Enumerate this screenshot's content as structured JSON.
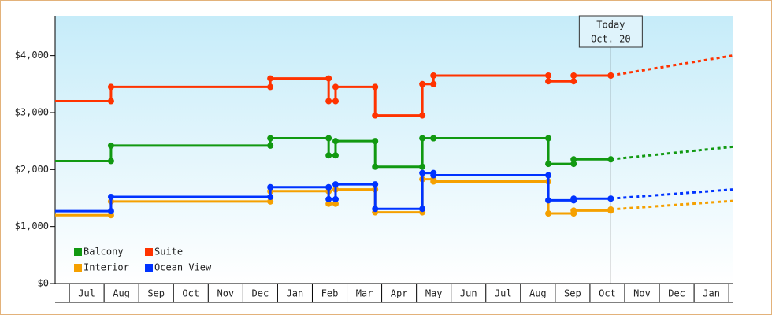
{
  "chart_data": {
    "type": "step",
    "xlim": [
      -0.41,
      19.11
    ],
    "ylim": [
      0,
      4700
    ],
    "yticks": [
      {
        "value": 0,
        "label": "$0"
      },
      {
        "value": 1000,
        "label": "$1,000"
      },
      {
        "value": 2000,
        "label": "$2,000"
      },
      {
        "value": 3000,
        "label": "$3,000"
      },
      {
        "value": 4000,
        "label": "$4,000"
      }
    ],
    "xticks": [
      {
        "value": 0.5,
        "label": "Jul"
      },
      {
        "value": 1.5,
        "label": "Aug"
      },
      {
        "value": 2.5,
        "label": "Sep"
      },
      {
        "value": 3.5,
        "label": "Oct"
      },
      {
        "value": 4.5,
        "label": "Nov"
      },
      {
        "value": 5.5,
        "label": "Dec"
      },
      {
        "value": 6.5,
        "label": "Jan"
      },
      {
        "value": 7.5,
        "label": "Feb"
      },
      {
        "value": 8.5,
        "label": "Mar"
      },
      {
        "value": 9.5,
        "label": "Apr"
      },
      {
        "value": 10.5,
        "label": "May"
      },
      {
        "value": 11.5,
        "label": "Jun"
      },
      {
        "value": 12.5,
        "label": "Jul"
      },
      {
        "value": 13.5,
        "label": "Aug"
      },
      {
        "value": 14.5,
        "label": "Sep"
      },
      {
        "value": 15.5,
        "label": "Oct"
      },
      {
        "value": 16.5,
        "label": "Nov"
      },
      {
        "value": 17.5,
        "label": "Dec"
      },
      {
        "value": 18.5,
        "label": "Jan"
      }
    ],
    "x": [
      -0.41,
      1.2,
      5.79,
      7.47,
      7.67,
      8.81,
      10.17,
      10.49,
      13.8,
      14.53,
      15.6
    ],
    "projection_x": [
      15.6,
      19.11
    ],
    "series": [
      {
        "name": "Balcony",
        "color": "#119911",
        "values": [
          2150,
          2420,
          2550,
          2250,
          2500,
          2050,
          2550,
          2550,
          2100,
          2180,
          2180
        ],
        "projection": [
          2180,
          2400
        ]
      },
      {
        "name": "Suite",
        "color": "#ff3300",
        "values": [
          3200,
          3450,
          3600,
          3200,
          3450,
          2950,
          3500,
          3650,
          3550,
          3650,
          3650
        ],
        "projection": [
          3650,
          4000
        ]
      },
      {
        "name": "Interior",
        "color": "#f5a000",
        "values": [
          1200,
          1440,
          1620,
          1400,
          1650,
          1250,
          1830,
          1790,
          1230,
          1280,
          1300
        ],
        "projection": [
          1300,
          1450
        ]
      },
      {
        "name": "Ocean View",
        "color": "#0033ff",
        "values": [
          1270,
          1520,
          1690,
          1480,
          1740,
          1310,
          1940,
          1900,
          1460,
          1490,
          1490
        ],
        "projection": [
          1490,
          1650
        ]
      }
    ],
    "legend": "lower left",
    "today": {
      "x": 15.6,
      "label": "Today",
      "date": "Oct. 20"
    }
  }
}
